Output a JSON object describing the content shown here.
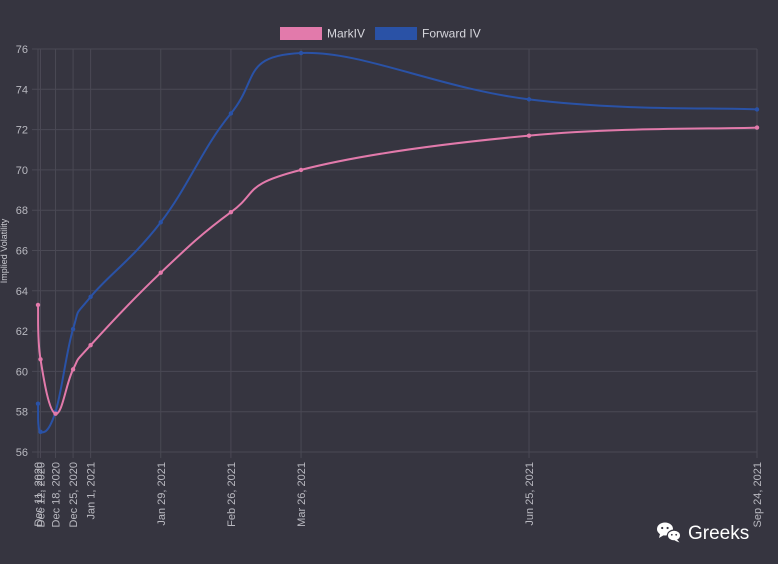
{
  "chart_data": {
    "type": "line",
    "ylabel": "Implied Volatility",
    "ylim": [
      56,
      76
    ],
    "yticks": [
      56,
      58,
      60,
      62,
      64,
      66,
      68,
      70,
      72,
      74,
      76
    ],
    "x_dates": [
      "2020-12-11",
      "2020-12-12",
      "2020-12-18",
      "2020-12-25",
      "2021-01-01",
      "2021-01-29",
      "2021-02-26",
      "2021-03-26",
      "2021-06-25",
      "2021-09-24"
    ],
    "x_tick_labels": [
      "Dec 11, 2020",
      "Dec 12, 2020",
      "Dec 18, 2020",
      "Dec 25, 2020",
      "Jan 1, 2021",
      "Jan 29, 2021",
      "Feb 26, 2021",
      "Mar 26, 2021",
      "Jun 25, 2021",
      "Sep 24, 2021"
    ],
    "series": [
      {
        "name": "MarkIV",
        "color": "#e27aab",
        "values": [
          63.3,
          60.6,
          57.9,
          60.1,
          61.3,
          64.9,
          67.9,
          70.0,
          71.7,
          72.1
        ]
      },
      {
        "name": "Forward IV",
        "color": "#2a52a6",
        "values": [
          58.4,
          57.0,
          58.0,
          62.1,
          63.7,
          67.4,
          72.8,
          75.8,
          73.5,
          73.0
        ]
      }
    ],
    "legend_position": "top",
    "grid": true
  },
  "watermark": {
    "text": "Greeks",
    "icon": "wechat-icon"
  }
}
